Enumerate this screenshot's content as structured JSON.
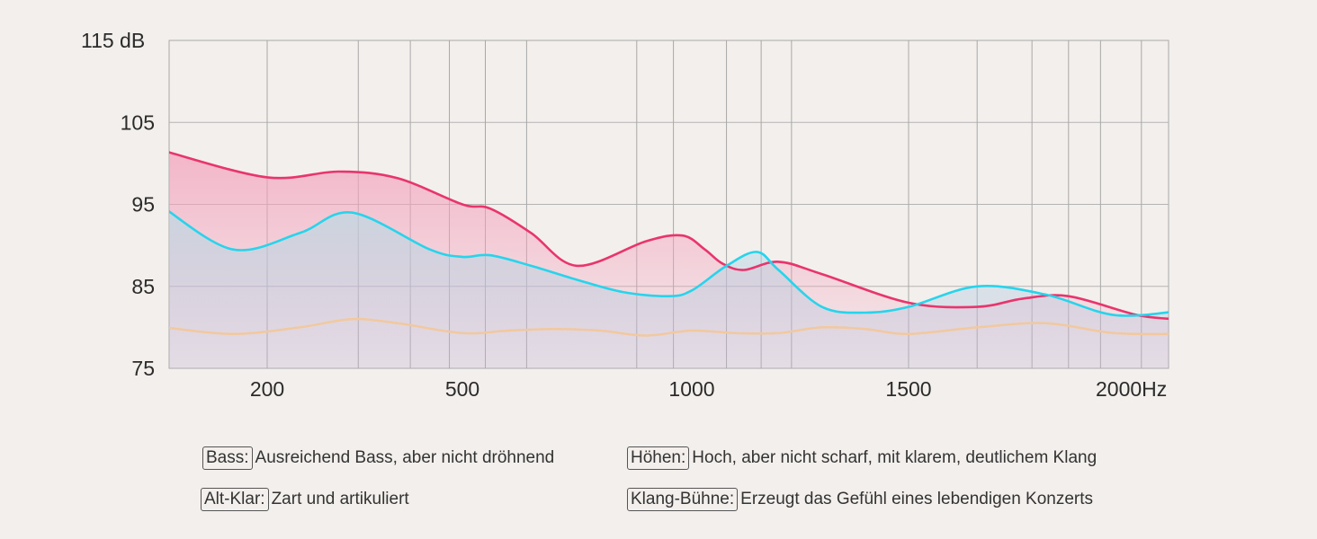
{
  "chart_data": {
    "type": "line",
    "y_unit": "dB",
    "x_unit": "Hz",
    "y_ticks": [
      "115",
      "105",
      "95",
      "85",
      "75"
    ],
    "x_tick_labels": [
      "200",
      "500",
      "1000",
      "1500",
      "2000"
    ],
    "ylim": [
      75,
      115
    ],
    "grid": true,
    "series": [
      {
        "color": "#e8356d",
        "fill": true,
        "x": [
          50,
          200,
          310,
          400,
          500,
          560,
          650,
          750,
          900,
          980,
          1030,
          1070,
          1120,
          1200,
          1300,
          1500,
          1650,
          1750,
          1850,
          2000,
          2090
        ],
        "y": [
          101.5,
          98.3,
          99,
          98.2,
          95,
          94.5,
          91.5,
          87.5,
          90.5,
          91.2,
          89.5,
          87.8,
          87.0,
          88.0,
          86.5,
          83,
          82.5,
          83.5,
          83.8,
          81.5,
          81.0
        ]
      },
      {
        "color": "#26d4ec",
        "fill": true,
        "x": [
          50,
          150,
          250,
          330,
          450,
          500,
          560,
          650,
          750,
          850,
          950,
          1000,
          1080,
          1150,
          1200,
          1300,
          1400,
          1500,
          1650,
          1800,
          1950,
          2100
        ],
        "y": [
          94.5,
          89.5,
          91.5,
          94.0,
          89.5,
          88.6,
          88.8,
          87.5,
          85.8,
          84.3,
          83.8,
          84.5,
          87.5,
          89.2,
          87.0,
          82.5,
          81.8,
          82.5,
          85.0,
          84.0,
          81.5,
          82.0
        ]
      },
      {
        "color": "#f2c89e",
        "fill": false,
        "x": [
          50,
          150,
          250,
          330,
          400,
          500,
          600,
          700,
          800,
          900,
          1000,
          1100,
          1200,
          1300,
          1400,
          1500,
          1650,
          1800,
          1950,
          2100
        ],
        "y": [
          80.0,
          79.2,
          80.0,
          81.0,
          80.5,
          79.3,
          79.6,
          79.8,
          79.6,
          79.0,
          79.6,
          79.3,
          79.3,
          80.0,
          79.8,
          79.2,
          80.0,
          80.5,
          79.3,
          79.2
        ]
      }
    ]
  },
  "legend": [
    {
      "key": "Bass:",
      "text": "Ausreichend Bass, aber nicht dröhnend"
    },
    {
      "key": "Höhen:",
      "text": "Hoch, aber nicht scharf, mit klarem, deutlichem Klang"
    },
    {
      "key": "Alt-Klar:",
      "text": "Zart und artikuliert"
    },
    {
      "key": "Klang-Bühne:",
      "text": "Erzeugt das Gefühl eines lebendigen Konzerts"
    }
  ]
}
